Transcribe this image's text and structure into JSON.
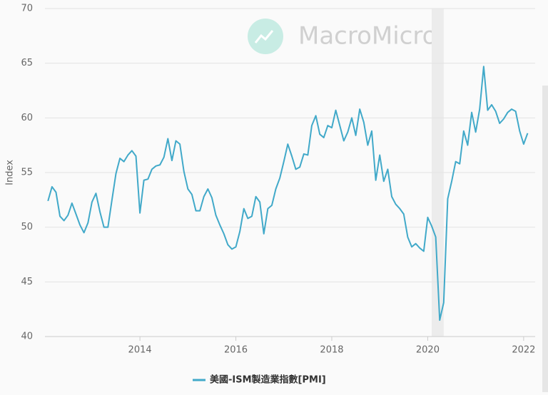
{
  "chart_data": {
    "type": "line",
    "y_label": "Index",
    "watermark": "MacroMicro",
    "xlim": [
      2012.02,
      2022.24
    ],
    "xticks": [
      2014,
      2016,
      2018,
      2020,
      2022
    ],
    "ylim": [
      40,
      70
    ],
    "yticks": [
      40,
      45,
      50,
      55,
      60,
      65,
      70
    ],
    "grid": true,
    "shaded_period": [
      2020.083,
      2020.333
    ],
    "x": [
      2012.083,
      2012.167,
      2012.25,
      2012.333,
      2012.417,
      2012.5,
      2012.583,
      2012.667,
      2012.75,
      2012.833,
      2012.917,
      2013.0,
      2013.083,
      2013.167,
      2013.25,
      2013.333,
      2013.417,
      2013.5,
      2013.583,
      2013.667,
      2013.75,
      2013.833,
      2013.917,
      2014.0,
      2014.083,
      2014.167,
      2014.25,
      2014.333,
      2014.417,
      2014.5,
      2014.583,
      2014.667,
      2014.75,
      2014.833,
      2014.917,
      2015.0,
      2015.083,
      2015.167,
      2015.25,
      2015.333,
      2015.417,
      2015.5,
      2015.583,
      2015.667,
      2015.75,
      2015.833,
      2015.917,
      2016.0,
      2016.083,
      2016.167,
      2016.25,
      2016.333,
      2016.417,
      2016.5,
      2016.583,
      2016.667,
      2016.75,
      2016.833,
      2016.917,
      2017.0,
      2017.083,
      2017.167,
      2017.25,
      2017.333,
      2017.417,
      2017.5,
      2017.583,
      2017.667,
      2017.75,
      2017.833,
      2017.917,
      2018.0,
      2018.083,
      2018.167,
      2018.25,
      2018.333,
      2018.417,
      2018.5,
      2018.583,
      2018.667,
      2018.75,
      2018.833,
      2018.917,
      2019.0,
      2019.083,
      2019.167,
      2019.25,
      2019.333,
      2019.417,
      2019.5,
      2019.583,
      2019.667,
      2019.75,
      2019.833,
      2019.917,
      2020.0,
      2020.083,
      2020.167,
      2020.25,
      2020.333,
      2020.417,
      2020.5,
      2020.583,
      2020.667,
      2020.75,
      2020.833,
      2020.917,
      2021.0,
      2021.083,
      2021.167,
      2021.25,
      2021.333,
      2021.417,
      2021.5,
      2021.583,
      2021.667,
      2021.75,
      2021.833,
      2021.917,
      2022.0,
      2022.083
    ],
    "series": [
      {
        "name": "美國-ISM製造業指數[PMI]",
        "color": "#41a9c9",
        "values": [
          52.4,
          53.7,
          53.2,
          51.0,
          50.6,
          51.1,
          52.2,
          51.2,
          50.2,
          49.5,
          50.4,
          52.3,
          53.1,
          51.4,
          50.0,
          50.0,
          52.5,
          54.9,
          56.3,
          56.0,
          56.6,
          57.0,
          56.5,
          51.3,
          54.3,
          54.4,
          55.3,
          55.6,
          55.7,
          56.4,
          58.1,
          56.1,
          57.9,
          57.6,
          55.1,
          53.5,
          53.0,
          51.5,
          51.5,
          52.8,
          53.5,
          52.7,
          51.1,
          50.2,
          49.4,
          48.4,
          48.0,
          48.2,
          49.6,
          51.7,
          50.8,
          51.0,
          52.8,
          52.3,
          49.4,
          51.7,
          52.0,
          53.5,
          54.5,
          56.0,
          57.6,
          56.5,
          55.3,
          55.5,
          56.7,
          56.6,
          59.3,
          60.2,
          58.5,
          58.2,
          59.3,
          59.1,
          60.7,
          59.3,
          57.9,
          58.7,
          60.0,
          58.4,
          60.8,
          59.6,
          57.5,
          58.8,
          54.3,
          56.6,
          54.2,
          55.3,
          52.8,
          52.1,
          51.7,
          51.2,
          49.1,
          48.2,
          48.5,
          48.1,
          47.8,
          50.9,
          50.1,
          49.1,
          41.5,
          43.1,
          52.6,
          54.2,
          56.0,
          55.8,
          58.8,
          57.5,
          60.5,
          58.7,
          60.8,
          64.7,
          60.7,
          61.2,
          60.6,
          59.5,
          59.9,
          60.5,
          60.8,
          60.6,
          58.8,
          57.6,
          58.6
        ]
      }
    ]
  }
}
